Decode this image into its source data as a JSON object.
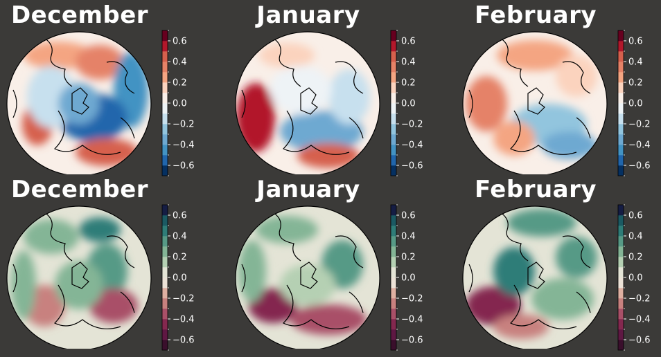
{
  "panels": [
    {
      "title": "December",
      "cmap": "RdBu_r",
      "row": 0,
      "col": 0
    },
    {
      "title": "January",
      "cmap": "RdBu_r",
      "row": 0,
      "col": 1
    },
    {
      "title": "February",
      "cmap": "RdBu_r",
      "row": 0,
      "col": 2
    },
    {
      "title": "December",
      "cmap": "curl_r",
      "row": 1,
      "col": 0
    },
    {
      "title": "January",
      "cmap": "curl_r",
      "row": 1,
      "col": 1
    },
    {
      "title": "February",
      "cmap": "curl_r",
      "row": 1,
      "col": 2
    }
  ],
  "colorbar": {
    "ticks": [
      0.6,
      0.4,
      0.2,
      0.0,
      -0.2,
      -0.4,
      -0.6
    ],
    "tick_labels": [
      "0.6",
      "0.4",
      "0.2",
      "0.0",
      "−0.2",
      "−0.4",
      "−0.6"
    ],
    "vmin": -0.7,
    "vmax": 0.7,
    "levels": 14
  },
  "colors": {
    "background": "#3b3a38",
    "RdBu_r": [
      "#053061",
      "#2166ac",
      "#4393c3",
      "#6ea9d1",
      "#92c5de",
      "#c7e0ee",
      "#eef3f6",
      "#f9efe8",
      "#fbd3be",
      "#f4a582",
      "#e58267",
      "#d6604d",
      "#b2182b",
      "#67001f"
    ],
    "curl_r": [
      "#3a0f2c",
      "#5f1843",
      "#84284f",
      "#a95068",
      "#c8817f",
      "#dfb0a2",
      "#ece2d7",
      "#e4e4d6",
      "#b5d0b3",
      "#84b596",
      "#579a86",
      "#2f7d78",
      "#1b5a63",
      "#151d44"
    ]
  }
}
